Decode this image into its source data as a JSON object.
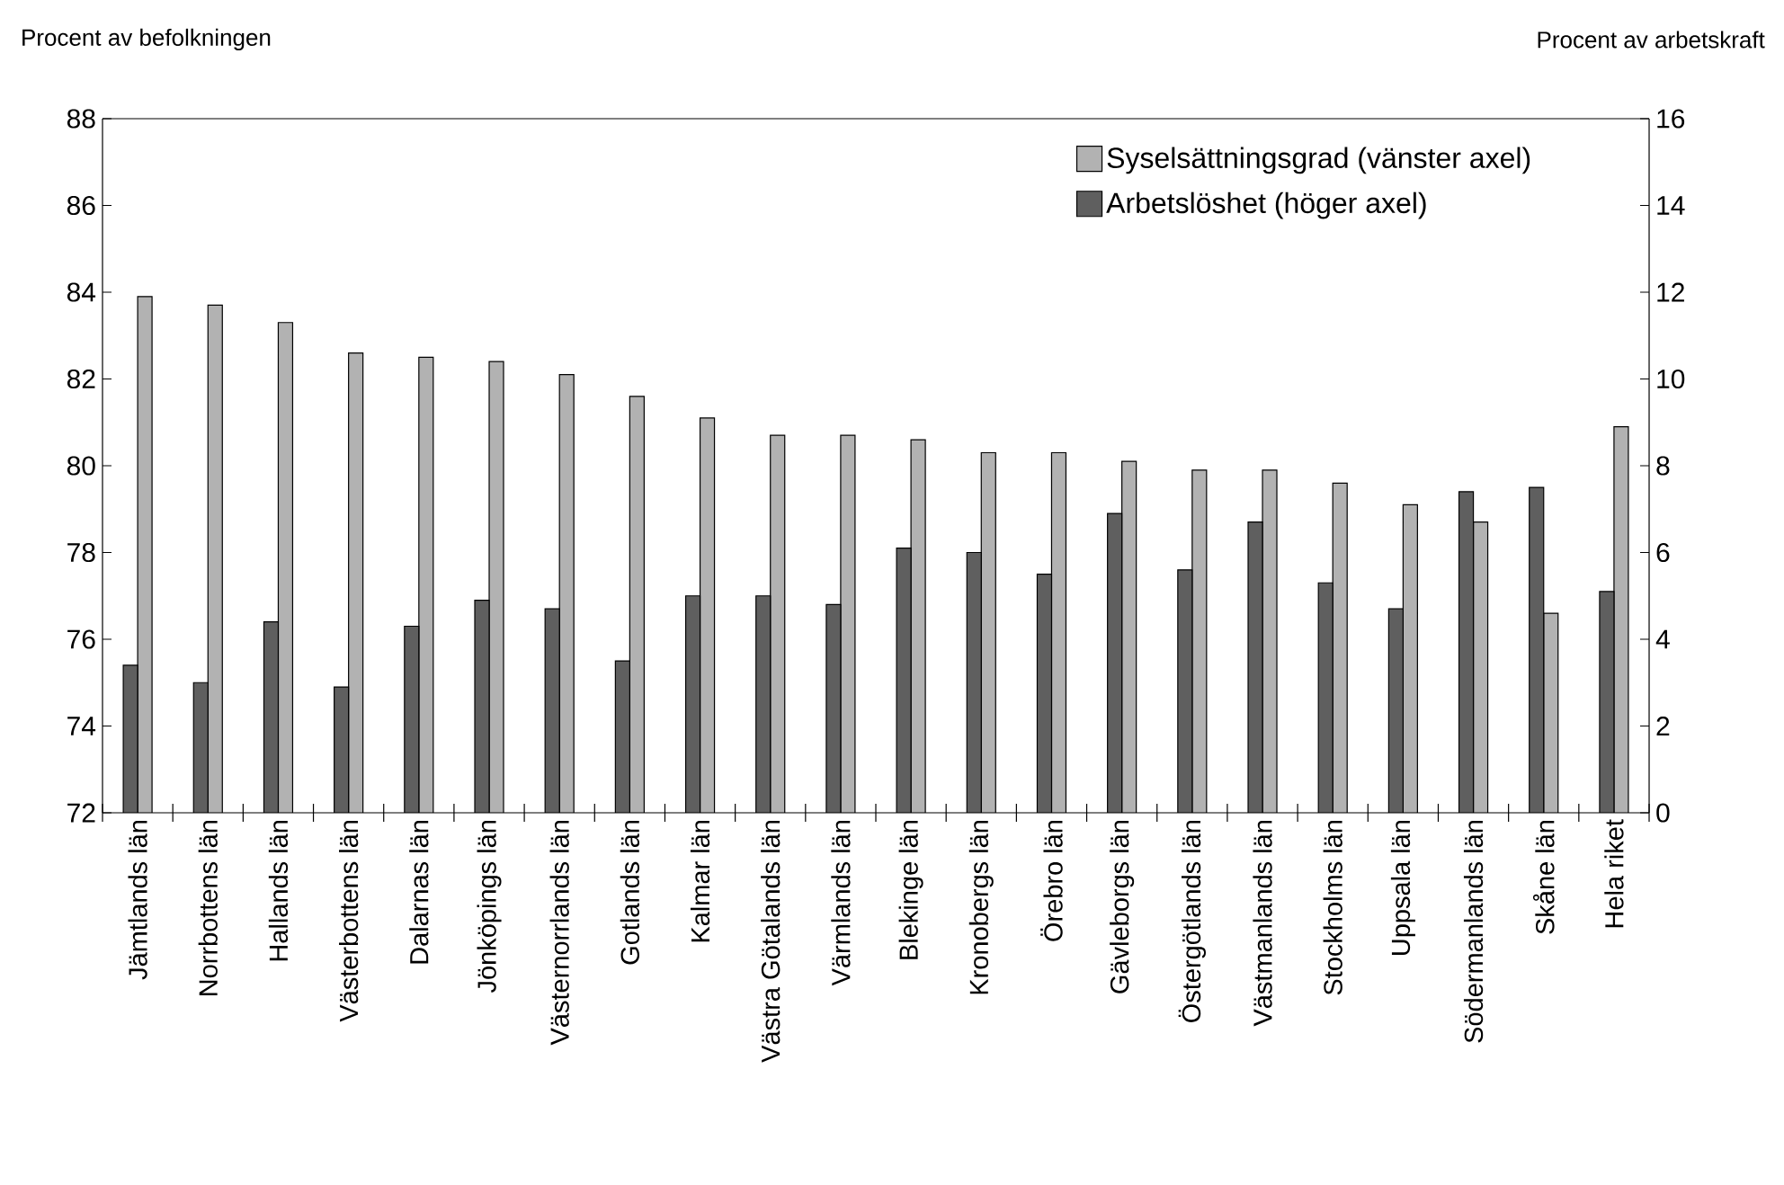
{
  "chart_data": {
    "type": "bar",
    "ylabel": "Procent av befolkningen",
    "y2label": "Procent av arbetskraft",
    "categories": [
      "Jämtlands län",
      "Norrbottens län",
      "Hallands län",
      "Västerbottens län",
      "Dalarnas län",
      "Jönköpings län",
      "Västernorrlands län",
      "Gotlands län",
      "Kalmar län",
      "Västra Götalands län",
      "Värmlands län",
      "Blekinge län",
      "Kronobergs län",
      "Örebro län",
      "Gävleborgs län",
      "Östergötlands län",
      "Västmanlands län",
      "Stockholms län",
      "Uppsala län",
      "Södermanlands län",
      "Skåne län",
      "Hela riket"
    ],
    "series": [
      {
        "name": "Syselsättningsgrad (vänster axel)",
        "color": "#b2b2b2",
        "values": [
          83.9,
          83.7,
          83.3,
          82.6,
          82.5,
          82.4,
          82.1,
          81.6,
          81.1,
          80.7,
          80.7,
          80.6,
          80.3,
          80.3,
          80.1,
          79.9,
          79.9,
          79.6,
          79.1,
          78.7,
          76.6,
          80.9
        ]
      },
      {
        "name": "Arbetslöshet (höger axel)",
        "color": "#5f5f5f",
        "axis": "y2",
        "values": [
          3.4,
          3.0,
          4.4,
          2.9,
          4.3,
          4.9,
          4.7,
          3.5,
          5.0,
          5.0,
          4.8,
          6.1,
          6.0,
          5.5,
          6.9,
          5.6,
          6.7,
          5.3,
          4.7,
          7.4,
          7.5,
          5.1
        ]
      }
    ],
    "ylim": [
      72,
      88
    ],
    "yticks": [
      72,
      74,
      76,
      78,
      80,
      82,
      84,
      86,
      88
    ],
    "y2lim": [
      0,
      16
    ],
    "y2ticks": [
      0,
      2,
      4,
      6,
      8,
      10,
      12,
      14,
      16
    ],
    "legend": "top right"
  }
}
